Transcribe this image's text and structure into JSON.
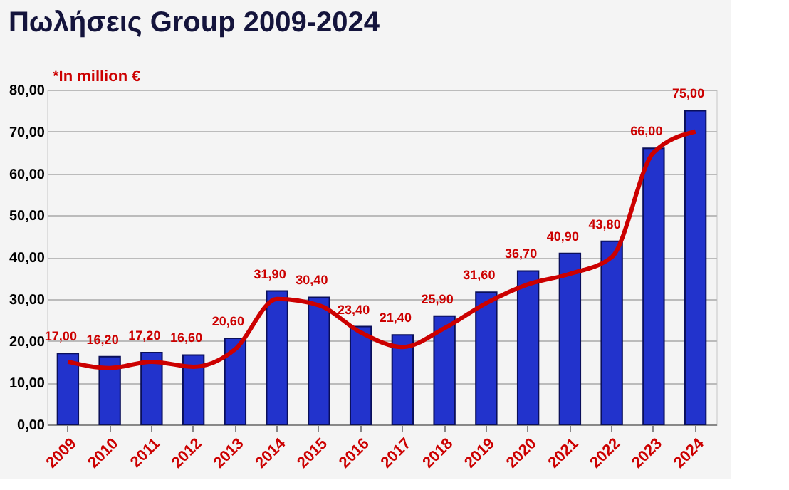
{
  "chart_data": {
    "type": "bar",
    "title": "Πωλήσεις Group 2009-2024",
    "annotations": [
      "*In million €"
    ],
    "categories": [
      "2009",
      "2010",
      "2011",
      "2012",
      "2013",
      "2014",
      "2015",
      "2016",
      "2017",
      "2018",
      "2019",
      "2020",
      "2021",
      "2022",
      "2023",
      "2024"
    ],
    "series": [
      {
        "color": "#2233cc",
        "values": [
          17.0,
          16.2,
          17.2,
          16.6,
          20.6,
          31.9,
          30.4,
          23.4,
          21.4,
          25.9,
          31.6,
          36.7,
          40.9,
          43.8,
          66.0,
          75.0
        ],
        "value_labels": [
          "17,00",
          "16,20",
          "17,20",
          "16,60",
          "20,60",
          "31,90",
          "30,40",
          "23,40",
          "21,40",
          "25,90",
          "31,60",
          "36,70",
          "40,90",
          "43,80",
          "66,00",
          "75,00"
        ]
      },
      {
        "type": "line",
        "color": "#cc0000",
        "values": [
          15,
          13.5,
          15,
          13.8,
          18,
          30,
          28.5,
          22,
          18.5,
          23,
          29,
          33.5,
          36,
          40,
          65,
          70
        ]
      }
    ],
    "ylim": [
      0,
      80
    ],
    "yticks": [
      {
        "value": 0,
        "label": "0,00"
      },
      {
        "value": 10,
        "label": "10,00"
      },
      {
        "value": 20,
        "label": "20,00"
      },
      {
        "value": 30,
        "label": "30,00"
      },
      {
        "value": 40,
        "label": "40,00"
      },
      {
        "value": 50,
        "label": "50,00"
      },
      {
        "value": 60,
        "label": "60,00"
      },
      {
        "value": 70,
        "label": "70,00"
      },
      {
        "value": 80,
        "label": "80,00"
      }
    ],
    "grid": "y"
  }
}
